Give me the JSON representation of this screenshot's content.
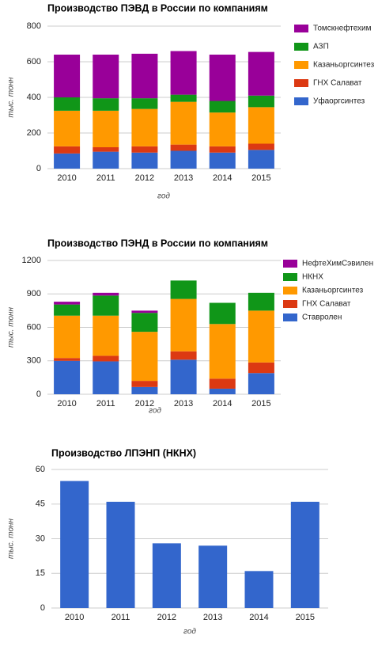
{
  "chart_data": [
    {
      "type": "bar",
      "stacked": true,
      "title": "Производство ПЭВД в России по компаниям",
      "x_label": "год",
      "y_label": "тыс. тонн",
      "categories": [
        "2010",
        "2011",
        "2012",
        "2013",
        "2014",
        "2015"
      ],
      "series": [
        {
          "name": "Уфаоргсинтез",
          "color": "#3366cc",
          "values": [
            85,
            95,
            90,
            100,
            90,
            105
          ]
        },
        {
          "name": "ГНХ Салават",
          "color": "#dc3912",
          "values": [
            40,
            25,
            35,
            35,
            35,
            35
          ]
        },
        {
          "name": "Казаньоргсинтез",
          "color": "#ff9900",
          "values": [
            200,
            205,
            210,
            240,
            190,
            205
          ]
        },
        {
          "name": "АЗП",
          "color": "#109618",
          "values": [
            75,
            70,
            60,
            40,
            65,
            65
          ]
        },
        {
          "name": "Томскнефтехим",
          "color": "#990099",
          "values": [
            240,
            245,
            250,
            245,
            260,
            245
          ]
        }
      ],
      "ylim": [
        0,
        800
      ],
      "yticks": [
        0,
        200,
        400,
        600,
        800
      ],
      "grid": true,
      "legend": "right"
    },
    {
      "type": "bar",
      "stacked": true,
      "title": "Производство ПЭНД в России по компаниям",
      "x_label": "год",
      "y_label": "тыс. тонн",
      "categories": [
        "2010",
        "2011",
        "2012",
        "2013",
        "2014",
        "2015"
      ],
      "series": [
        {
          "name": "Ставролен",
          "color": "#3366cc",
          "values": [
            300,
            295,
            65,
            310,
            50,
            190
          ]
        },
        {
          "name": "ГНХ Салават",
          "color": "#dc3912",
          "values": [
            25,
            50,
            55,
            75,
            90,
            95
          ]
        },
        {
          "name": "Казаньоргсинтез",
          "color": "#ff9900",
          "values": [
            380,
            360,
            440,
            470,
            490,
            465
          ]
        },
        {
          "name": "НКНХ",
          "color": "#109618",
          "values": [
            100,
            180,
            170,
            165,
            190,
            160
          ]
        },
        {
          "name": "НефтеХимСэвилен",
          "color": "#990099",
          "values": [
            25,
            25,
            20,
            0,
            0,
            0
          ]
        }
      ],
      "ylim": [
        0,
        1200
      ],
      "yticks": [
        0,
        300,
        600,
        900,
        1200
      ],
      "grid": true,
      "legend": "right"
    },
    {
      "type": "bar",
      "title": "Производство ЛПЭНП (НКНХ)",
      "x_label": "год",
      "y_label": "тыс. тонн",
      "categories": [
        "2010",
        "2011",
        "2012",
        "2013",
        "2014",
        "2015"
      ],
      "values": [
        55,
        46,
        28,
        27,
        16,
        46
      ],
      "color": "#3366cc",
      "ylim": [
        0,
        60
      ],
      "yticks": [
        0,
        15,
        30,
        45,
        60
      ],
      "grid": true
    }
  ]
}
